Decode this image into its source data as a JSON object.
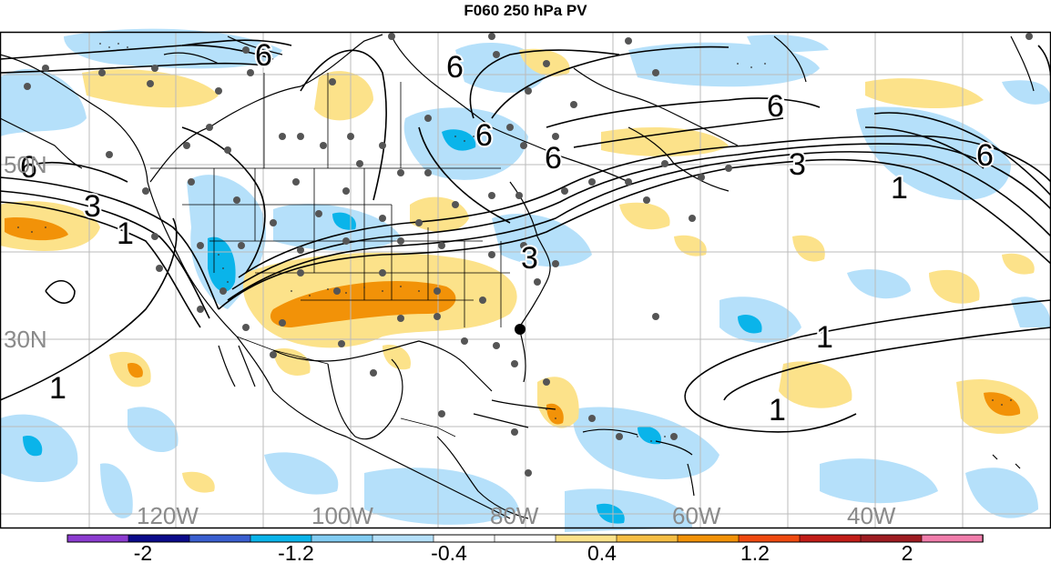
{
  "title": "F060 250 hPa PV",
  "lat_labels": [
    "50N",
    "30N"
  ],
  "lon_labels": [
    "120W",
    "100W",
    "80W",
    "60W",
    "40W"
  ],
  "contour_labels": [
    "6",
    "6",
    "6",
    "6",
    "6",
    "6",
    "6",
    "3",
    "3",
    "3",
    "1",
    "1",
    "1",
    "1",
    "1"
  ],
  "colorbar": {
    "ticks": [
      "-2",
      "-1.2",
      "-0.4",
      "0.4",
      "1.2",
      "2"
    ],
    "colors": [
      "#8c3cd0",
      "#0b0b8a",
      "#3a5fd0",
      "#0ab4ea",
      "#82ccf2",
      "#b5e0fa",
      "#ffffff",
      "#ffffff",
      "#fce28a",
      "#f6be44",
      "#f29208",
      "#ef4a10",
      "#c21d18",
      "#9e1c22",
      "#f07dab"
    ]
  },
  "fill_colors": {
    "light_blue": "#b5e0fa",
    "mid_blue": "#0ab4ea",
    "light_yellow": "#fce28a",
    "orange": "#f29208"
  }
}
